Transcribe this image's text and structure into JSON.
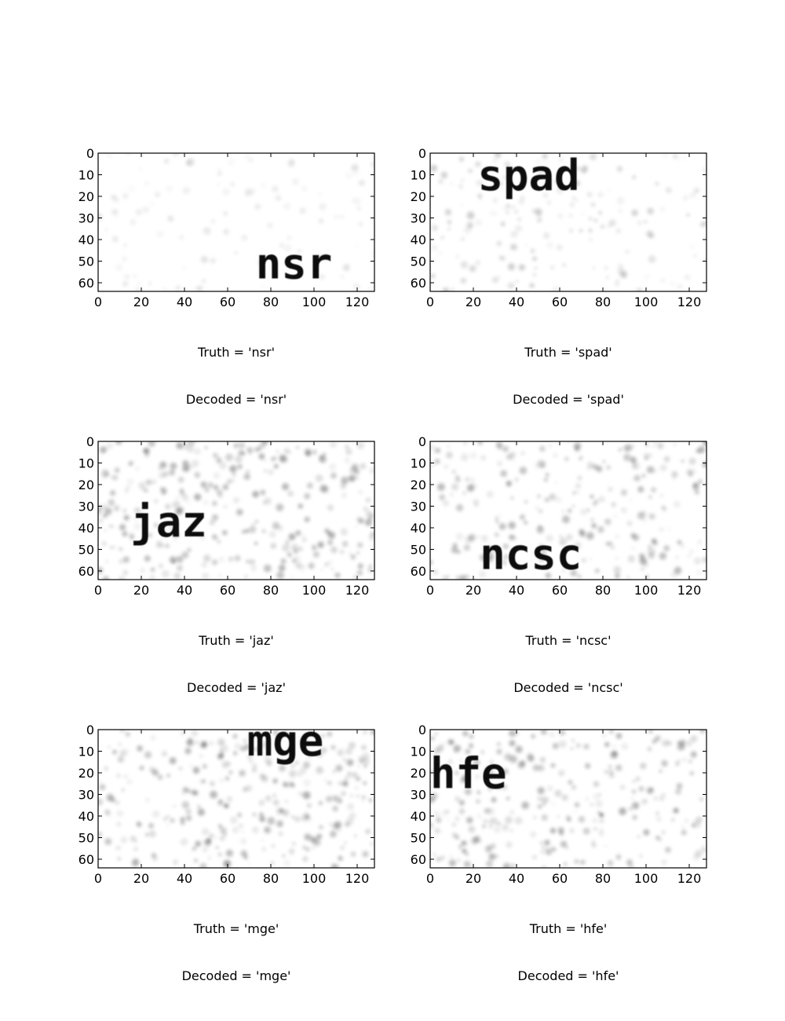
{
  "figure": {
    "axes_style": {
      "xlim": [
        0,
        128
      ],
      "ylim": [
        64,
        0
      ],
      "xticks": [
        0,
        20,
        40,
        60,
        80,
        100,
        120
      ],
      "yticks": [
        0,
        10,
        20,
        30,
        40,
        50,
        60
      ],
      "grid": false
    },
    "panels": [
      {
        "truth_text": "Truth = 'nsr'",
        "decoded_text": "Decoded = 'nsr'",
        "word": "nsr",
        "text_x": 73,
        "text_y": 58,
        "noise": 0.25
      },
      {
        "truth_text": "Truth = 'spad'",
        "decoded_text": "Decoded = 'spad'",
        "word": "spad",
        "text_x": 22,
        "text_y": 17,
        "noise": 0.5
      },
      {
        "truth_text": "Truth = 'jaz'",
        "decoded_text": "Decoded = 'jaz'",
        "word": "jaz",
        "text_x": 15,
        "text_y": 44,
        "noise": 1.0
      },
      {
        "truth_text": "Truth = 'ncsc'",
        "decoded_text": "Decoded = 'ncsc'",
        "word": "ncsc",
        "text_x": 23,
        "text_y": 59,
        "noise": 0.8
      },
      {
        "truth_text": "Truth = 'mge'",
        "decoded_text": "Decoded = 'mge'",
        "word": "mge",
        "text_x": 69,
        "text_y": 12,
        "noise": 1.0
      },
      {
        "truth_text": "Truth = 'hfe'",
        "decoded_text": "Decoded = 'hfe'",
        "word": "hfe",
        "text_x": 0,
        "text_y": 27,
        "noise": 0.9
      }
    ]
  },
  "chart_data": [
    {
      "type": "image",
      "label": "Truth = 'nsr'\nDecoded = 'nsr'",
      "truth": "nsr",
      "decoded": "nsr",
      "xlim": [
        0,
        128
      ],
      "ylim": [
        64,
        0
      ]
    },
    {
      "type": "image",
      "label": "Truth = 'spad'\nDecoded = 'spad'",
      "truth": "spad",
      "decoded": "spad",
      "xlim": [
        0,
        128
      ],
      "ylim": [
        64,
        0
      ]
    },
    {
      "type": "image",
      "label": "Truth = 'jaz'\nDecoded = 'jaz'",
      "truth": "jaz",
      "decoded": "jaz",
      "xlim": [
        0,
        128
      ],
      "ylim": [
        64,
        0
      ]
    },
    {
      "type": "image",
      "label": "Truth = 'ncsc'\nDecoded = 'ncsc'",
      "truth": "ncsc",
      "decoded": "ncsc",
      "xlim": [
        0,
        128
      ],
      "ylim": [
        64,
        0
      ]
    },
    {
      "type": "image",
      "label": "Truth = 'mge'\nDecoded = 'mge'",
      "truth": "mge",
      "decoded": "mge",
      "xlim": [
        0,
        128
      ],
      "ylim": [
        64,
        0
      ]
    },
    {
      "type": "image",
      "label": "Truth = 'hfe'\nDecoded = 'hfe'",
      "truth": "hfe",
      "decoded": "hfe",
      "xlim": [
        0,
        128
      ],
      "ylim": [
        64,
        0
      ]
    }
  ]
}
